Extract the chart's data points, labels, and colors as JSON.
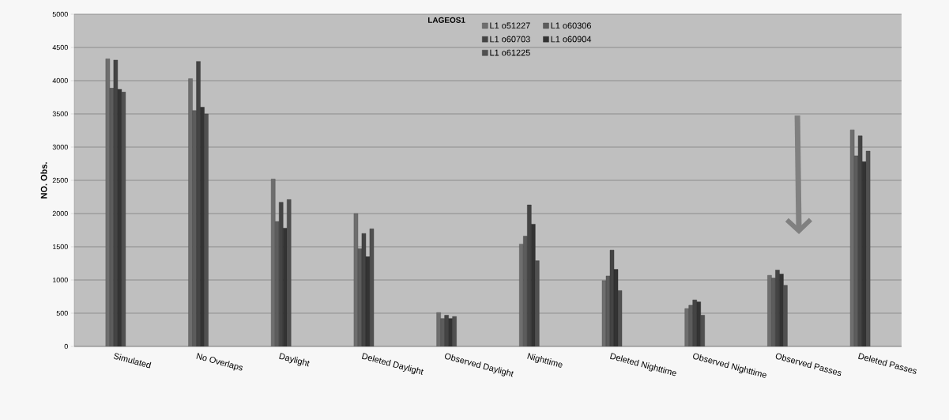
{
  "chart_data": {
    "type": "bar",
    "title": "LAGEOS1",
    "ylabel": "NO. Obs.",
    "categories": [
      "Simulated",
      "No Overlaps",
      "Daylight",
      "Deleted Daylight",
      "Observed Daylight",
      "Nighttime",
      "Deleted Nighttime",
      "Observed Nighttime",
      "Observed Passes",
      "Deleted Passes"
    ],
    "series": [
      {
        "name": "L1 o51227",
        "color": "#6e6e6e",
        "values": [
          4330,
          4030,
          2520,
          2000,
          510,
          1540,
          990,
          570,
          1070,
          3260
        ]
      },
      {
        "name": "L1 o60306",
        "color": "#5c5c5c",
        "values": [
          3890,
          3550,
          1880,
          1470,
          420,
          1660,
          1060,
          620,
          1030,
          2870
        ]
      },
      {
        "name": "L1 o60703",
        "color": "#444444",
        "values": [
          4310,
          4290,
          2170,
          1700,
          470,
          2130,
          1450,
          700,
          1150,
          3170
        ]
      },
      {
        "name": "L1 o60904",
        "color": "#333333",
        "values": [
          3870,
          3600,
          1780,
          1350,
          420,
          1840,
          1160,
          670,
          1090,
          2780
        ]
      },
      {
        "name": "L1 o61225",
        "color": "#505050",
        "values": [
          3830,
          3500,
          2210,
          1770,
          450,
          1290,
          840,
          470,
          920,
          2940
        ]
      }
    ],
    "ylim": [
      0,
      5000
    ],
    "yticks": [
      0,
      500,
      1000,
      1500,
      2000,
      2500,
      3000,
      3500,
      4000,
      4500,
      5000
    ],
    "grid": "y",
    "legend": "top"
  }
}
